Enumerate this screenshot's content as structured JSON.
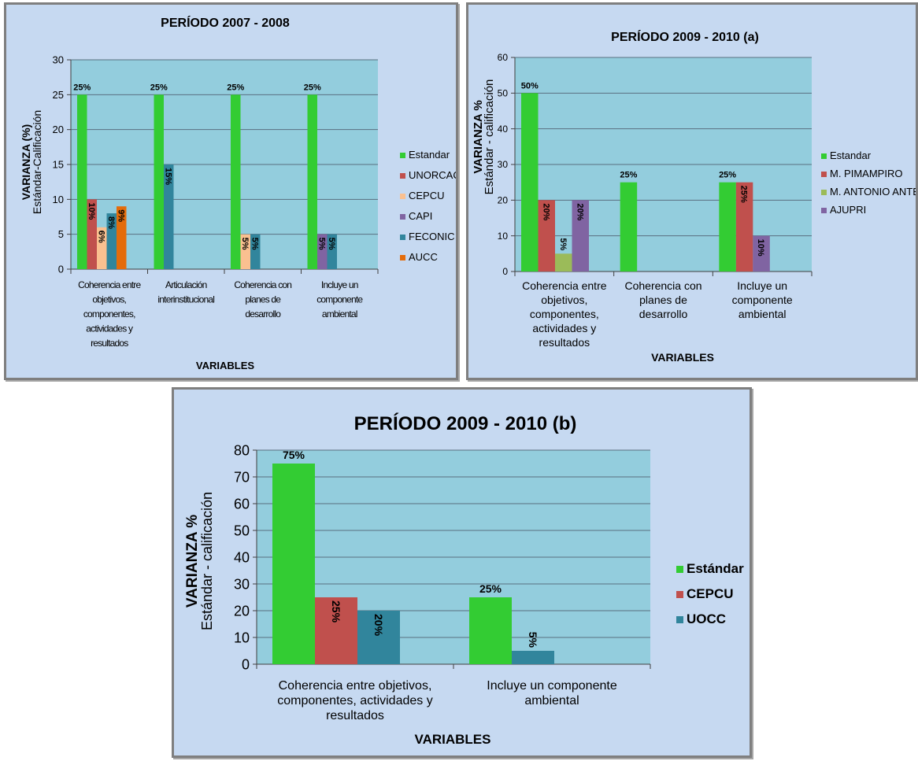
{
  "chart_data": [
    {
      "type": "bar",
      "title": "PERÍODO 2007 - 2008",
      "ylabel": "VARIANZA (%)",
      "ylabel2": "Estándar-Calificación",
      "xlabel": "VARIABLES",
      "ylim": [
        0,
        30
      ],
      "yticks": [
        0,
        5,
        10,
        15,
        20,
        25,
        30
      ],
      "categories": [
        [
          "Coherencia entre",
          "objetivos,",
          "componentes,",
          "actividades y",
          "resultados"
        ],
        [
          "Articulación",
          "interinstitucional"
        ],
        [
          "Coherencia con",
          "planes de",
          "desarrollo"
        ],
        [
          "Incluye un",
          "componente",
          "ambiental"
        ]
      ],
      "legend_position": "right",
      "grid": true,
      "series": [
        {
          "name": "Estandar",
          "color": "#33cc33",
          "values": [
            25,
            25,
            25,
            25
          ],
          "labels": [
            "25%",
            "25%",
            "25%",
            "25%"
          ]
        },
        {
          "name": "UNORCAC",
          "color": "#c0504d",
          "values": [
            10,
            null,
            null,
            null
          ],
          "labels": [
            "10%",
            "",
            "",
            ""
          ]
        },
        {
          "name": "CEPCU",
          "color": "#fac090",
          "values": [
            6,
            null,
            5,
            null
          ],
          "labels": [
            "6%",
            "",
            "5%",
            ""
          ]
        },
        {
          "name": "CAPI",
          "color": "#8064a2",
          "values": [
            null,
            null,
            null,
            5
          ],
          "labels": [
            "",
            "",
            "",
            "5%"
          ]
        },
        {
          "name": "FECONIC",
          "color": "#31859c",
          "values": [
            8,
            15,
            5,
            5
          ],
          "labels": [
            "8%",
            "15%",
            "5%",
            "5%"
          ]
        },
        {
          "name": "AUCC",
          "color": "#e46c0a",
          "values": [
            9,
            null,
            null,
            null
          ],
          "labels": [
            "9%",
            "",
            "",
            ""
          ]
        }
      ]
    },
    {
      "type": "bar",
      "title": "PERÍODO 2009 - 2010 (a)",
      "ylabel": "VARIANZA %",
      "ylabel2": "Estándar - calificación",
      "xlabel": "VARIABLES",
      "ylim": [
        0,
        60
      ],
      "yticks": [
        0,
        10,
        20,
        30,
        40,
        50,
        60
      ],
      "categories": [
        [
          "Coherencia entre",
          "objetivos,",
          "componentes,",
          "actividades y",
          "resultados"
        ],
        [
          "Coherencia con",
          "planes de",
          "desarrollo"
        ],
        [
          "Incluye un",
          "componente",
          "ambiental"
        ]
      ],
      "legend_position": "right",
      "grid": true,
      "series": [
        {
          "name": "Estandar",
          "color": "#33cc33",
          "values": [
            50,
            25,
            25
          ],
          "labels": [
            "50%",
            "25%",
            "25%"
          ]
        },
        {
          "name": "M. PIMAMPIRO",
          "color": "#c0504d",
          "values": [
            20,
            null,
            25
          ],
          "labels": [
            "20%",
            "",
            "25%"
          ]
        },
        {
          "name": "M. ANTONIO ANTE",
          "color": "#9bbb59",
          "values": [
            5,
            null,
            null
          ],
          "labels": [
            "5%",
            "",
            ""
          ]
        },
        {
          "name": "AJUPRI",
          "color": "#8064a2",
          "values": [
            20,
            null,
            10
          ],
          "labels": [
            "20%",
            "",
            "10%"
          ]
        }
      ]
    },
    {
      "type": "bar",
      "title": "PERÍODO 2009 - 2010 (b)",
      "ylabel": "VARIANZA %",
      "ylabel2": "Estándar - calificación",
      "xlabel": "VARIABLES",
      "ylim": [
        0,
        80
      ],
      "yticks": [
        0,
        10,
        20,
        30,
        40,
        50,
        60,
        70,
        80
      ],
      "categories": [
        [
          "Coherencia entre objetivos,",
          "componentes, actividades y",
          "resultados"
        ],
        [
          "Incluye un componente",
          "ambiental"
        ]
      ],
      "legend_position": "right",
      "grid": true,
      "series": [
        {
          "name": "Estándar",
          "color": "#33cc33",
          "values": [
            75,
            25
          ],
          "labels": [
            "75%",
            "25%"
          ]
        },
        {
          "name": "CEPCU",
          "color": "#c0504d",
          "values": [
            25,
            null
          ],
          "labels": [
            "25%",
            ""
          ]
        },
        {
          "name": "UOCC",
          "color": "#31859c",
          "values": [
            20,
            5
          ],
          "labels": [
            "20%",
            "5%"
          ]
        }
      ]
    }
  ]
}
